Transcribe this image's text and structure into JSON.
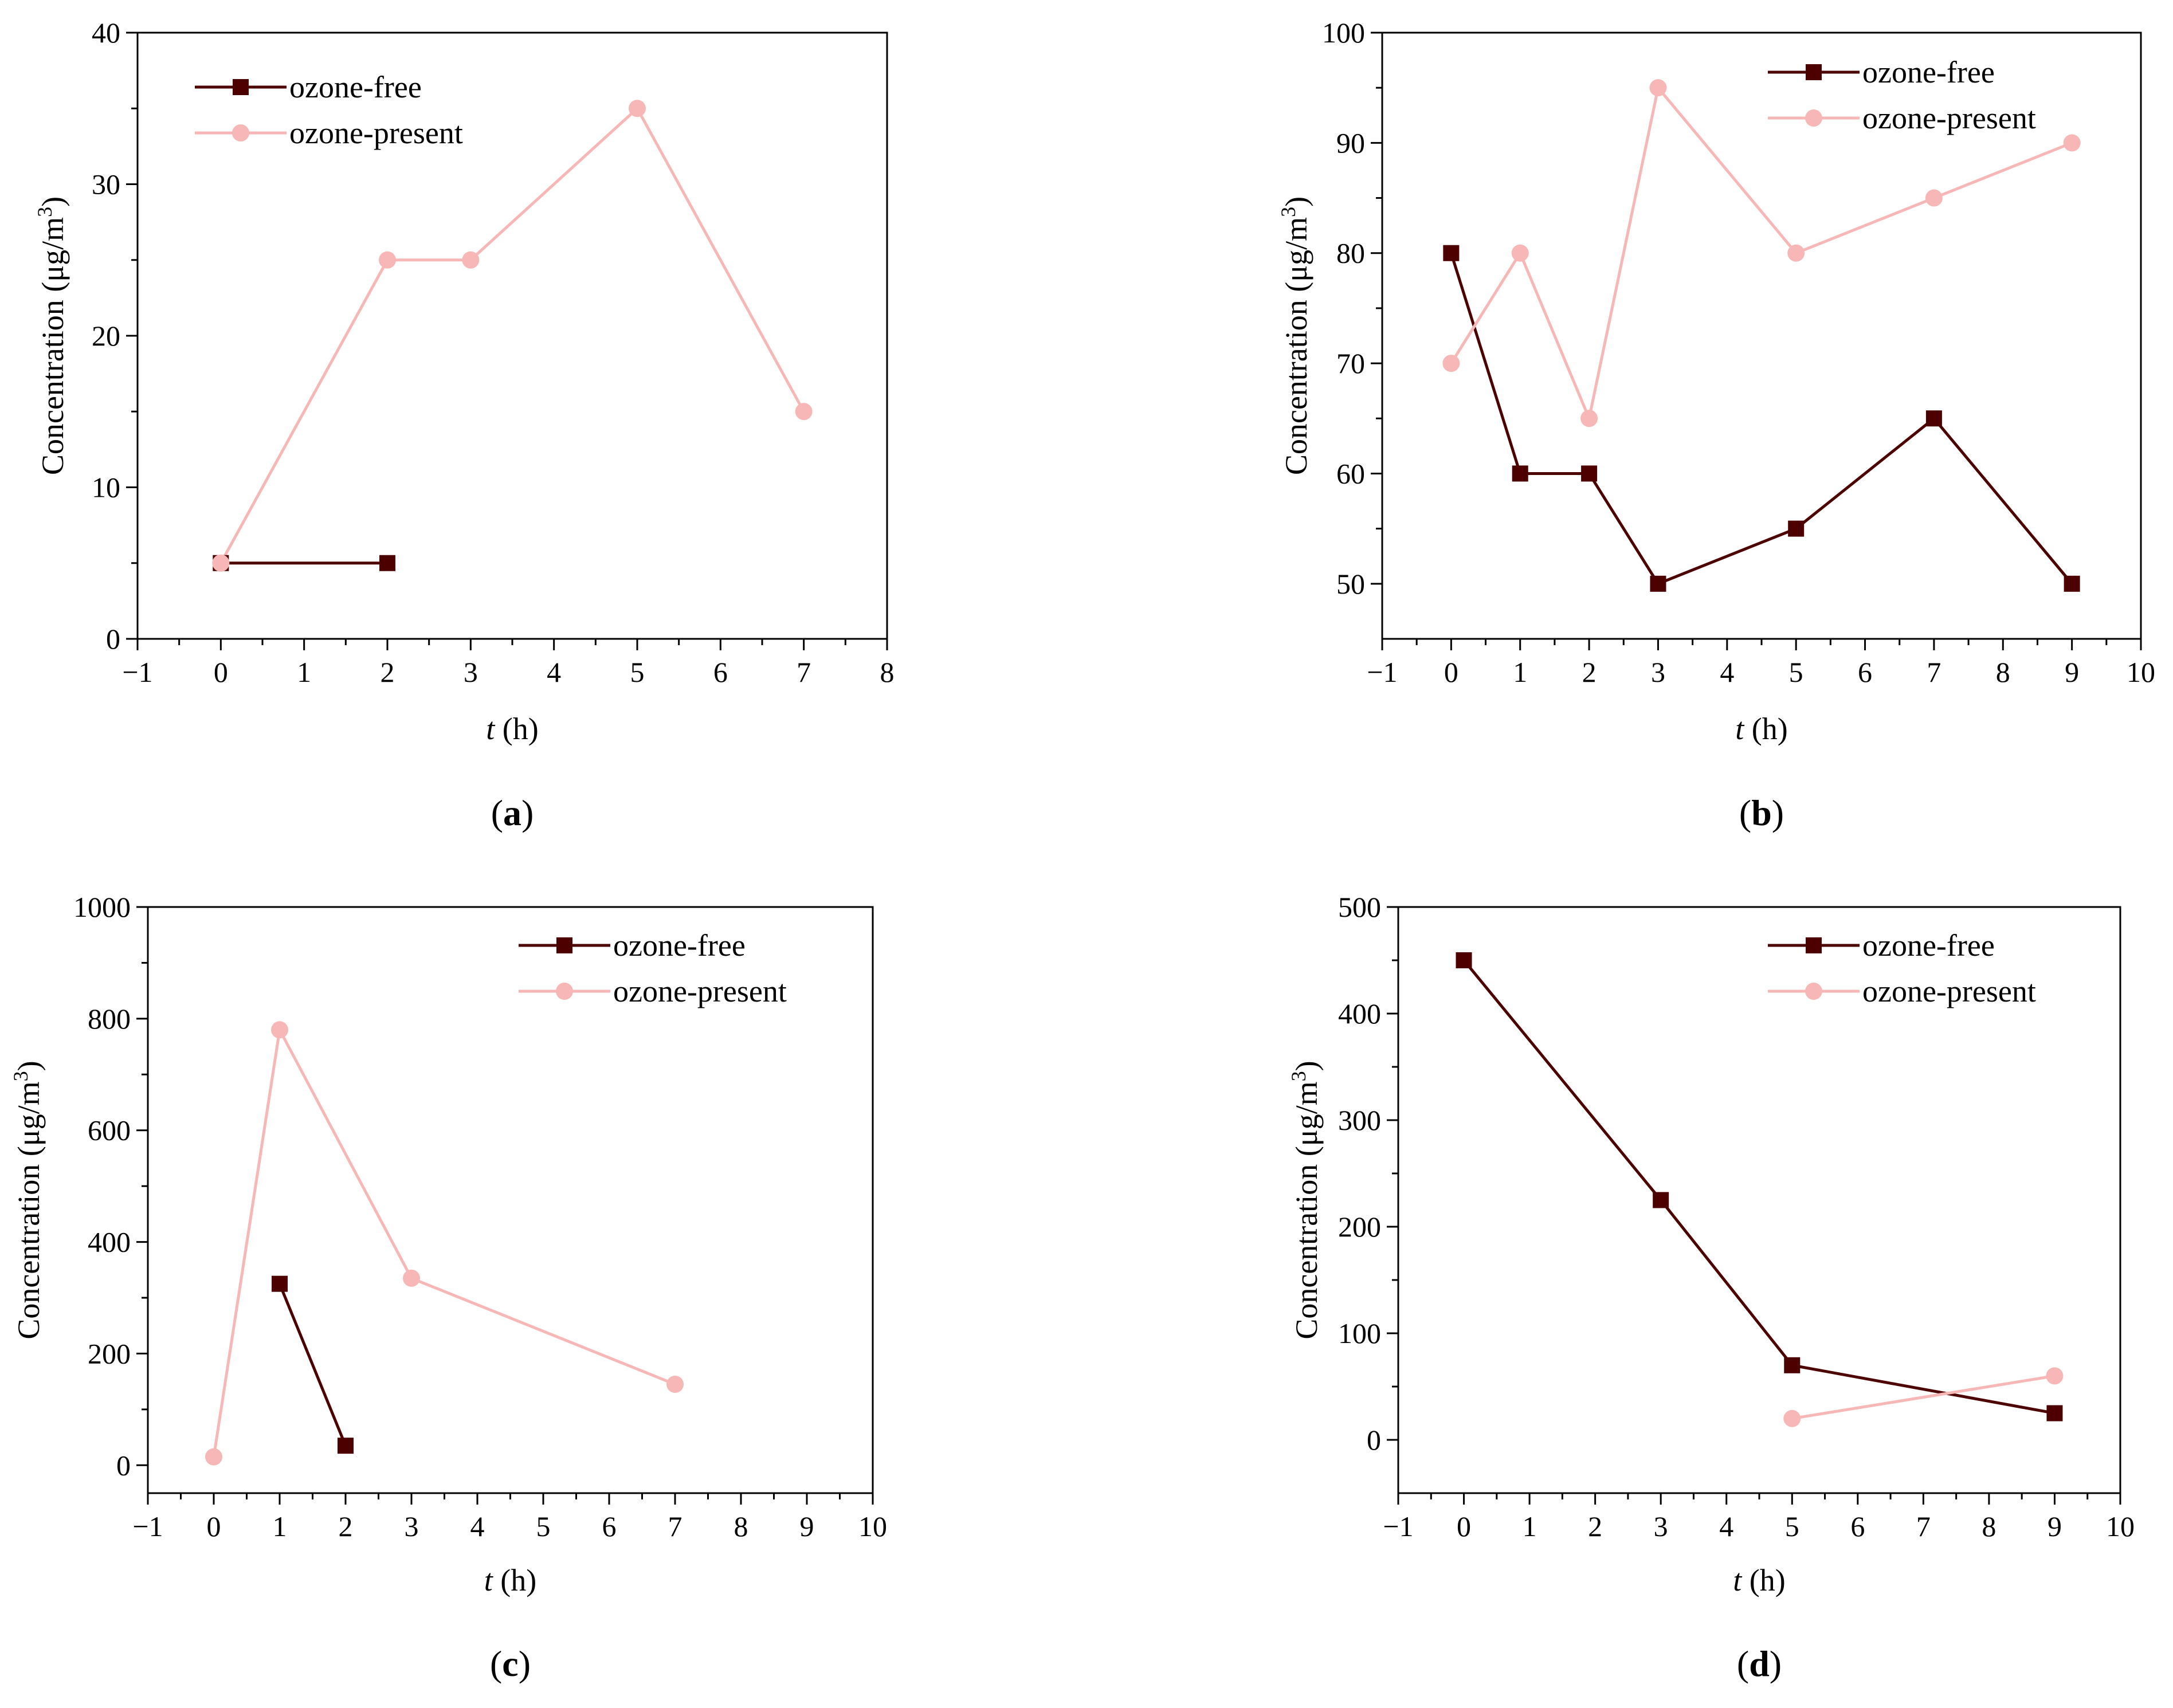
{
  "colors": {
    "ozone_free": "#4d0000",
    "ozone_present": "#f7b7b7",
    "axis": "#000000"
  },
  "chart_data": [
    {
      "type": "line",
      "panel_label_prefix": "(",
      "panel_label": "a",
      "panel_label_suffix": ")",
      "xlabel_var": "t",
      "xlabel_unit": " (h)",
      "ylabel": "Concentration (μg/m",
      "ylabel_sup": "3",
      "ylabel_close": ")",
      "xlim": [
        -1,
        8
      ],
      "ylim": [
        0,
        40
      ],
      "xticks": [
        -1,
        0,
        1,
        2,
        3,
        4,
        5,
        6,
        7,
        8
      ],
      "xtick_labels": [
        "−1",
        "0",
        "1",
        "2",
        "3",
        "4",
        "5",
        "6",
        "7",
        "8"
      ],
      "yticks": [
        0,
        10,
        20,
        30,
        40
      ],
      "ytick_labels": [
        "0",
        "10",
        "20",
        "30",
        "40"
      ],
      "legend_position": "top-left",
      "series": [
        {
          "name": "ozone-free",
          "marker": "square",
          "x": [
            0,
            2
          ],
          "values": [
            5,
            5
          ]
        },
        {
          "name": "ozone-present",
          "marker": "circle",
          "x": [
            0,
            2,
            3,
            5,
            7
          ],
          "values": [
            5,
            25,
            25,
            35,
            15
          ]
        }
      ]
    },
    {
      "type": "line",
      "panel_label_prefix": "(",
      "panel_label": "b",
      "panel_label_suffix": ")",
      "xlabel_var": "t",
      "xlabel_unit": " (h)",
      "ylabel": "Concentration (μg/m",
      "ylabel_sup": "3",
      "ylabel_close": ")",
      "xlim": [
        -1,
        10
      ],
      "ylim": [
        45,
        100
      ],
      "xticks": [
        -1,
        0,
        1,
        2,
        3,
        4,
        5,
        6,
        7,
        8,
        9,
        10
      ],
      "xtick_labels": [
        "−1",
        "0",
        "1",
        "2",
        "3",
        "4",
        "5",
        "6",
        "7",
        "8",
        "9",
        "10"
      ],
      "yticks": [
        50,
        60,
        70,
        80,
        90,
        100
      ],
      "ytick_labels": [
        "50",
        "60",
        "70",
        "80",
        "90",
        "100"
      ],
      "legend_position": "top-right",
      "series": [
        {
          "name": "ozone-free",
          "marker": "square",
          "x": [
            0,
            1,
            2,
            3,
            5,
            7,
            9
          ],
          "values": [
            80,
            60,
            60,
            50,
            55,
            65,
            50
          ]
        },
        {
          "name": "ozone-present",
          "marker": "circle",
          "x": [
            0,
            1,
            2,
            3,
            5,
            7,
            9
          ],
          "values": [
            70,
            80,
            65,
            95,
            80,
            85,
            90
          ]
        }
      ]
    },
    {
      "type": "line",
      "panel_label_prefix": "(",
      "panel_label": "c",
      "panel_label_suffix": ")",
      "xlabel_var": "t",
      "xlabel_unit": " (h)",
      "ylabel": "Concentration (μg/m",
      "ylabel_sup": "3",
      "ylabel_close": ")",
      "xlim": [
        -1,
        10
      ],
      "ylim": [
        -50,
        1000
      ],
      "xticks": [
        -1,
        0,
        1,
        2,
        3,
        4,
        5,
        6,
        7,
        8,
        9,
        10
      ],
      "xtick_labels": [
        "−1",
        "0",
        "1",
        "2",
        "3",
        "4",
        "5",
        "6",
        "7",
        "8",
        "9",
        "10"
      ],
      "yticks": [
        0,
        200,
        400,
        600,
        800,
        1000
      ],
      "ytick_labels": [
        "0",
        "200",
        "400",
        "600",
        "800",
        "1000"
      ],
      "legend_position": "top-right",
      "series": [
        {
          "name": "ozone-free",
          "marker": "square",
          "x": [
            1,
            2
          ],
          "values": [
            325,
            35
          ]
        },
        {
          "name": "ozone-present",
          "marker": "circle",
          "x": [
            0,
            1,
            3,
            7
          ],
          "values": [
            15,
            780,
            335,
            145
          ]
        }
      ]
    },
    {
      "type": "line",
      "panel_label_prefix": "(",
      "panel_label": "d",
      "panel_label_suffix": ")",
      "xlabel_var": "t",
      "xlabel_unit": " (h)",
      "ylabel": "Concentration (μg/m",
      "ylabel_sup": "3",
      "ylabel_close": ")",
      "xlim": [
        -1,
        10
      ],
      "ylim": [
        -50,
        500
      ],
      "xticks": [
        -1,
        0,
        1,
        2,
        3,
        4,
        5,
        6,
        7,
        8,
        9,
        10
      ],
      "xtick_labels": [
        "−1",
        "0",
        "1",
        "2",
        "3",
        "4",
        "5",
        "6",
        "7",
        "8",
        "9",
        "10"
      ],
      "yticks": [
        0,
        100,
        200,
        300,
        400,
        500
      ],
      "ytick_labels": [
        "0",
        "100",
        "200",
        "300",
        "400",
        "500"
      ],
      "legend_position": "top-right",
      "series": [
        {
          "name": "ozone-free",
          "marker": "square",
          "x": [
            0,
            3,
            5,
            9
          ],
          "values": [
            450,
            225,
            70,
            25
          ]
        },
        {
          "name": "ozone-present",
          "marker": "circle",
          "x": [
            5,
            9
          ],
          "values": [
            20,
            60
          ]
        }
      ]
    }
  ]
}
